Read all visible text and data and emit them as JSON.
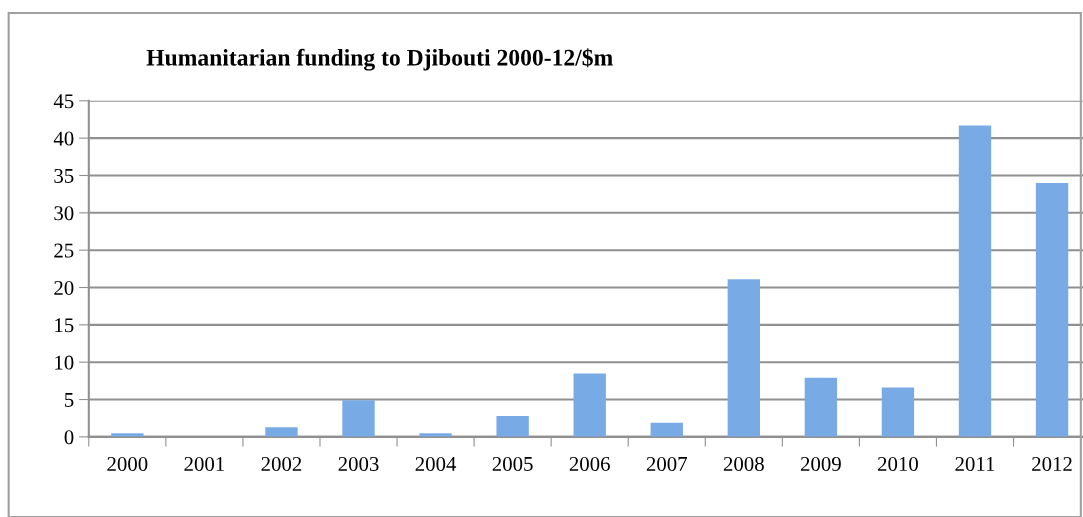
{
  "chart_data": {
    "type": "bar",
    "title": "Humanitarian funding to Djibouti 2000-12/$m",
    "categories": [
      "2000",
      "2001",
      "2002",
      "2003",
      "2004",
      "2005",
      "2006",
      "2007",
      "2008",
      "2009",
      "2010",
      "2011",
      "2012"
    ],
    "values": [
      0.5,
      0,
      1.3,
      4.9,
      0.5,
      2.8,
      8.5,
      1.9,
      21.1,
      7.9,
      6.6,
      41.7,
      34.0
    ],
    "color": "#78aae6",
    "ylim": [
      0,
      45
    ],
    "yticks": [
      0,
      5,
      10,
      15,
      20,
      25,
      30,
      35,
      40,
      45
    ],
    "grid": "y"
  }
}
